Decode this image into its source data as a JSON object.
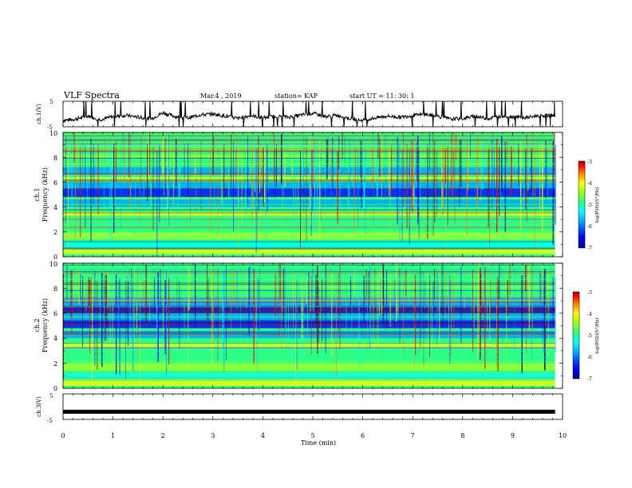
{
  "header": {
    "title": "VLF Spectra",
    "date": "Mar.4 , 2019",
    "station": "station= KAP",
    "start_ut": "start UT =  11: 30: 1"
  },
  "colors": {
    "wave": "#000000",
    "colormap": [
      "#00008f",
      "#0000ff",
      "#00a0ff",
      "#00ffff",
      "#30ff80",
      "#a0ff30",
      "#ffff00",
      "#ff8000",
      "#ff0000",
      "#800000"
    ]
  },
  "chart_data": [
    {
      "type": "line",
      "name": "ch1-waveform",
      "ylabel": "ch.1(V)",
      "ylim": [
        -5,
        5
      ],
      "yticks": [
        "5",
        "-5"
      ],
      "xlim": [
        0,
        10
      ],
      "x": [
        0,
        0.25,
        0.5,
        0.75,
        1.0,
        1.25,
        1.5,
        1.75,
        2.0,
        2.25,
        2.5,
        2.75,
        3.0,
        3.25,
        3.5,
        3.75,
        4.0,
        4.25,
        4.5,
        4.75,
        5.0,
        5.25,
        5.5,
        5.75,
        6.0,
        6.25,
        6.5,
        6.75,
        7.0,
        7.25,
        7.5,
        7.75,
        8.0,
        8.25,
        8.5,
        8.75,
        9.0,
        9.25,
        9.5,
        9.75,
        9.85
      ],
      "y": [
        -2.5,
        -2.0,
        -0.8,
        -2.2,
        -1.0,
        -0.5,
        -1.2,
        -2.0,
        0.5,
        -1.0,
        -1.5,
        -0.3,
        0.0,
        -0.8,
        -1.8,
        -0.6,
        -1.5,
        -0.8,
        -1.2,
        -0.5,
        0.3,
        -1.0,
        -0.5,
        -1.8,
        -2.5,
        -1.5,
        -0.8,
        -1.3,
        -0.5,
        -0.2,
        -0.8,
        -2.0,
        -1.8,
        -0.8,
        -1.8,
        -0.9,
        -1.0,
        -1.5,
        -0.7,
        -0.5,
        -0.6
      ]
    },
    {
      "type": "heatmap",
      "name": "ch1-spectrogram",
      "ylabel": "ch.1",
      "ylabel2": "Frequency (kHz)",
      "ylim": [
        0,
        10
      ],
      "yticks": [
        "0",
        "2",
        "4",
        "6",
        "8",
        "10"
      ],
      "xlim": [
        0,
        9.85
      ],
      "colorbar": {
        "label": "log(PSD)(V²/Hz)",
        "range": [
          -7,
          -3
        ],
        "ticks": [
          "-3",
          "-4",
          "-5",
          "-6",
          "-7"
        ]
      }
    },
    {
      "type": "heatmap",
      "name": "ch2-spectrogram",
      "ylabel": "ch.2",
      "ylabel2": "Frequency (kHz)",
      "ylim": [
        0,
        10
      ],
      "yticks": [
        "0",
        "2",
        "4",
        "6",
        "8",
        "10"
      ],
      "xlim": [
        0,
        9.85
      ],
      "colorbar": {
        "label": "log(PSD)(V²/Hz)",
        "range": [
          -7,
          -3
        ],
        "ticks": [
          "-3",
          "-4",
          "-5",
          "-6",
          "-7"
        ]
      }
    },
    {
      "type": "line",
      "name": "ch3-waveform",
      "ylabel": "ch.3(V)",
      "ylim": [
        -5,
        5
      ],
      "yticks": [
        "5",
        "-5"
      ],
      "xlim": [
        0,
        10
      ],
      "x": [
        0,
        9.85
      ],
      "y": [
        -2,
        -2
      ]
    }
  ],
  "xaxis": {
    "label": "Time (min)",
    "ticks": [
      "0",
      "1",
      "2",
      "3",
      "4",
      "5",
      "6",
      "7",
      "8",
      "9",
      "10"
    ]
  }
}
